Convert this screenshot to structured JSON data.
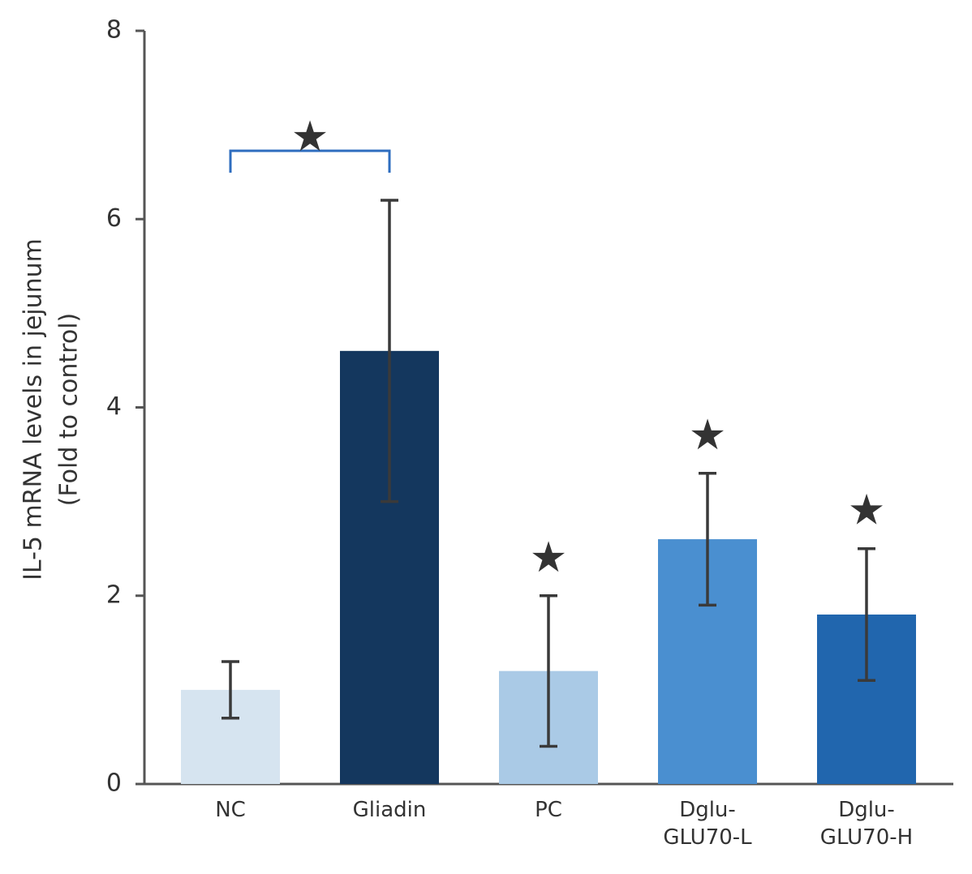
{
  "chart_data": {
    "type": "bar",
    "ylabel": [
      "IL-5 mRNA levels in jejunum",
      "(Fold to control)"
    ],
    "categories": [
      "NC",
      "Gliadin",
      "PC",
      "Dglu-GLU70-L",
      "Dglu-GLU70-H"
    ],
    "values": [
      1.0,
      4.6,
      1.2,
      2.6,
      1.8
    ],
    "errors": [
      0.3,
      1.6,
      0.8,
      0.7,
      0.7
    ],
    "colors": [
      "#d6e4f0",
      "#14375e",
      "#aacae6",
      "#4a8fd0",
      "#2166ae"
    ],
    "error_color": "#3a3a3a",
    "ylim": [
      0,
      8
    ],
    "yticks": [
      0,
      2,
      4,
      6,
      8
    ],
    "grid": false,
    "significance_color": "#2e6dbf",
    "significance": [
      {
        "label": "★",
        "between": [
          "NC",
          "Gliadin"
        ]
      },
      {
        "label": "★",
        "category": "PC"
      },
      {
        "label": "★",
        "category": "Dglu-GLU70-L"
      },
      {
        "label": "★",
        "category": "Dglu-GLU70-H"
      }
    ]
  }
}
